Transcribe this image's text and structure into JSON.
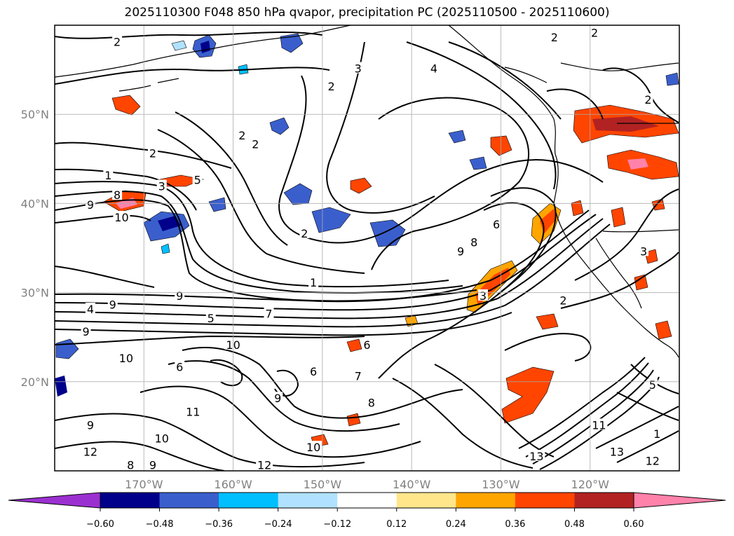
{
  "title": "2025110300 F048 850 hPa qvapor, precipitation PC (2025110500 - 2025110600)",
  "lon_ticks": [
    "170°W",
    "160°W",
    "150°W",
    "140°W",
    "130°W",
    "120°W"
  ],
  "lat_ticks": [
    "50°N",
    "40°N",
    "30°N",
    "20°N"
  ],
  "colorbar": {
    "ticks": [
      "-0.60",
      "-0.48",
      "-0.36",
      "-0.24",
      "-0.12",
      "0.12",
      "0.24",
      "0.36",
      "0.48",
      "0.60"
    ],
    "colors": [
      "#9b30d0",
      "#00008b",
      "#3a5fcd",
      "#00bfff",
      "#b0e2ff",
      "#ffffff",
      "#ffe68a",
      "#ffa500",
      "#ff4500",
      "#b22222",
      "#ff82ab"
    ]
  },
  "contour_labels": [
    {
      "text": "2",
      "lon": -173,
      "lat": 58
    },
    {
      "text": "1",
      "lon": -174,
      "lat": 43
    },
    {
      "text": "2",
      "lon": -169,
      "lat": 45.5
    },
    {
      "text": "3",
      "lon": -168,
      "lat": 41.8
    },
    {
      "text": "5",
      "lon": -164,
      "lat": 42.5
    },
    {
      "text": "8",
      "lon": -173,
      "lat": 40.8
    },
    {
      "text": "9",
      "lon": -176,
      "lat": 39.7
    },
    {
      "text": "10",
      "lon": -172.5,
      "lat": 38.3
    },
    {
      "text": "2",
      "lon": -159,
      "lat": 47.5
    },
    {
      "text": "2",
      "lon": -157.5,
      "lat": 46.5
    },
    {
      "text": "3",
      "lon": -146,
      "lat": 55
    },
    {
      "text": "2",
      "lon": -149,
      "lat": 53
    },
    {
      "text": "4",
      "lon": -137.5,
      "lat": 55
    },
    {
      "text": "2",
      "lon": -152,
      "lat": 36.5
    },
    {
      "text": "1",
      "lon": -151,
      "lat": 31
    },
    {
      "text": "6",
      "lon": -130.5,
      "lat": 37.5
    },
    {
      "text": "8",
      "lon": -133,
      "lat": 35.5
    },
    {
      "text": "9",
      "lon": -134.5,
      "lat": 34.5
    },
    {
      "text": "9",
      "lon": -166,
      "lat": 29.5
    },
    {
      "text": "4",
      "lon": -176,
      "lat": 28
    },
    {
      "text": "9",
      "lon": -173.5,
      "lat": 28.5
    },
    {
      "text": "5",
      "lon": -162.5,
      "lat": 27
    },
    {
      "text": "7",
      "lon": -156,
      "lat": 27.5
    },
    {
      "text": "9",
      "lon": -176.5,
      "lat": 25.5
    },
    {
      "text": "10",
      "lon": -160,
      "lat": 24
    },
    {
      "text": "10",
      "lon": -172,
      "lat": 22.5
    },
    {
      "text": "6",
      "lon": -166,
      "lat": 21.5
    },
    {
      "text": "6",
      "lon": -151,
      "lat": 21
    },
    {
      "text": "7",
      "lon": -146,
      "lat": 20.5
    },
    {
      "text": "8",
      "lon": -144.5,
      "lat": 17.5
    },
    {
      "text": "9",
      "lon": -155,
      "lat": 18
    },
    {
      "text": "11",
      "lon": -164.5,
      "lat": 16.5
    },
    {
      "text": "10",
      "lon": -168,
      "lat": 13.5
    },
    {
      "text": "10",
      "lon": -151,
      "lat": 12.5
    },
    {
      "text": "12",
      "lon": -176,
      "lat": 12
    },
    {
      "text": "8",
      "lon": -171.5,
      "lat": 10.5
    },
    {
      "text": "9",
      "lon": -169,
      "lat": 10.5
    },
    {
      "text": "12",
      "lon": -156.5,
      "lat": 10.5
    },
    {
      "text": "9",
      "lon": -176,
      "lat": 15
    },
    {
      "text": "13",
      "lon": -126,
      "lat": 11.5
    },
    {
      "text": "13",
      "lon": -117,
      "lat": 12
    },
    {
      "text": "11",
      "lon": -119,
      "lat": 15
    },
    {
      "text": "12",
      "lon": -113,
      "lat": 11
    },
    {
      "text": "1",
      "lon": -112.5,
      "lat": 14
    },
    {
      "text": "2",
      "lon": -123,
      "lat": 29
    },
    {
      "text": "3",
      "lon": -132,
      "lat": 29.5
    },
    {
      "text": "5",
      "lon": -113,
      "lat": 19.5
    },
    {
      "text": "6",
      "lon": -145,
      "lat": 24
    },
    {
      "text": "2",
      "lon": -124,
      "lat": 58.5
    },
    {
      "text": "2",
      "lon": -119.5,
      "lat": 59
    },
    {
      "text": "2",
      "lon": -113.5,
      "lat": 51.5
    },
    {
      "text": "3",
      "lon": -114,
      "lat": 34.5
    }
  ]
}
